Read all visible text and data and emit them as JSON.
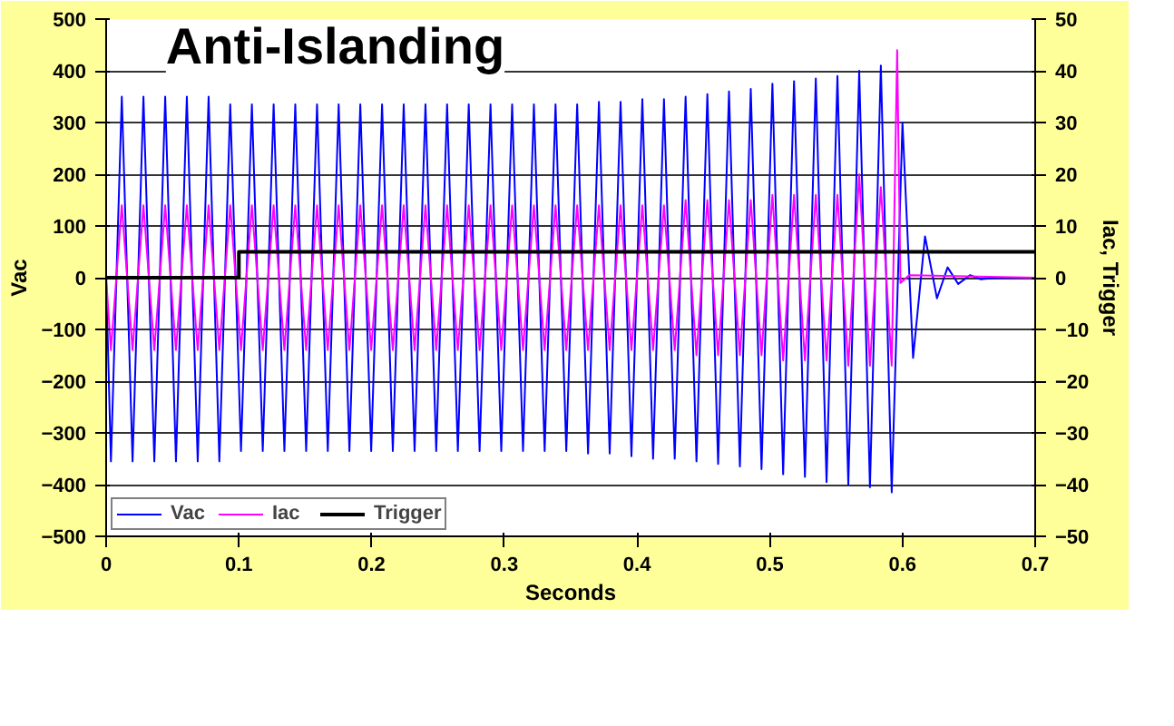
{
  "chart_data": {
    "type": "line",
    "title": "Anti-Islanding",
    "xlabel": "Seconds",
    "ylabel": "Vac",
    "y2label": "Iac, Trigger",
    "xlim": [
      0,
      0.7
    ],
    "xticks": [
      0,
      0.1,
      0.2,
      0.3,
      0.4,
      0.5,
      0.6,
      0.7
    ],
    "ylim": [
      -500,
      500
    ],
    "yticks": [
      -500,
      -400,
      -300,
      -200,
      -100,
      0,
      100,
      200,
      300,
      400,
      500
    ],
    "y2lim": [
      -50,
      50
    ],
    "y2ticks": [
      -50,
      -40,
      -30,
      -20,
      -10,
      0,
      10,
      20,
      30,
      40,
      50
    ],
    "grid": "y",
    "legend": "bottom left",
    "marker": "none",
    "line_style": "solid",
    "series": [
      {
        "name": "Vac",
        "color": "#0000ff",
        "x": [
          0,
          0.0036,
          0.0118,
          0.0199,
          0.0281,
          0.0363,
          0.0445,
          0.0526,
          0.0608,
          0.069,
          0.0772,
          0.0853,
          0.0935,
          0.1016,
          0.1098,
          0.118,
          0.1262,
          0.1343,
          0.1425,
          0.1507,
          0.1589,
          0.167,
          0.1752,
          0.1833,
          0.1915,
          0.1997,
          0.2079,
          0.216,
          0.2242,
          0.2324,
          0.2406,
          0.2487,
          0.2569,
          0.265,
          0.2732,
          0.2814,
          0.2896,
          0.2977,
          0.3059,
          0.3141,
          0.3223,
          0.3304,
          0.3386,
          0.3467,
          0.3549,
          0.3631,
          0.3713,
          0.3794,
          0.3876,
          0.3958,
          0.404,
          0.4121,
          0.4203,
          0.4284,
          0.4366,
          0.4448,
          0.453,
          0.4611,
          0.4693,
          0.4775,
          0.4857,
          0.4938,
          0.502,
          0.5101,
          0.5183,
          0.5265,
          0.5347,
          0.5428,
          0.551,
          0.5592,
          0.5674,
          0.5755,
          0.5837,
          0.5919,
          0.6,
          0.608,
          0.617,
          0.626,
          0.634,
          0.642,
          0.651,
          0.659,
          0.67,
          0.7
        ],
        "values": [
          0,
          -355,
          350,
          -355,
          350,
          -355,
          350,
          -355,
          350,
          -355,
          350,
          -355,
          335,
          -335,
          335,
          -335,
          335,
          -335,
          335,
          -335,
          335,
          -335,
          335,
          -335,
          335,
          -335,
          335,
          -335,
          335,
          -335,
          335,
          -335,
          335,
          -335,
          335,
          -335,
          335,
          -335,
          335,
          -335,
          335,
          -335,
          335,
          -335,
          335,
          -340,
          340,
          -340,
          340,
          -345,
          345,
          -350,
          345,
          -350,
          350,
          -355,
          355,
          -360,
          360,
          -365,
          365,
          -370,
          375,
          -380,
          380,
          -385,
          385,
          -395,
          390,
          -400,
          400,
          -405,
          410,
          -415,
          300,
          -155,
          80,
          -40,
          20,
          -12,
          5,
          -3,
          0,
          0
        ]
      },
      {
        "name": "Iac",
        "color": "#ff00ff",
        "axis": "y2",
        "x": [
          0,
          0.0036,
          0.0118,
          0.0199,
          0.0281,
          0.0363,
          0.0445,
          0.0526,
          0.0608,
          0.069,
          0.0772,
          0.0853,
          0.0935,
          0.1016,
          0.1098,
          0.118,
          0.1262,
          0.1343,
          0.1425,
          0.1507,
          0.1589,
          0.167,
          0.1752,
          0.1833,
          0.1915,
          0.1997,
          0.2079,
          0.216,
          0.2242,
          0.2324,
          0.2406,
          0.2487,
          0.2569,
          0.265,
          0.2732,
          0.2814,
          0.2896,
          0.2977,
          0.3059,
          0.3141,
          0.3223,
          0.3304,
          0.3386,
          0.3467,
          0.3549,
          0.3631,
          0.3713,
          0.3794,
          0.3876,
          0.3958,
          0.404,
          0.4121,
          0.4203,
          0.4284,
          0.4366,
          0.4448,
          0.453,
          0.4611,
          0.4693,
          0.4775,
          0.4857,
          0.4938,
          0.502,
          0.5101,
          0.5183,
          0.5265,
          0.5347,
          0.5428,
          0.551,
          0.5592,
          0.5674,
          0.5755,
          0.5837,
          0.5919,
          0.596,
          0.5985,
          0.605,
          0.7
        ],
        "values": [
          0,
          -14,
          14,
          -14,
          14,
          -14,
          14,
          -14,
          14,
          -14,
          14,
          -14,
          14,
          -14,
          14,
          -14,
          14,
          -14,
          14,
          -14,
          14,
          -14,
          14,
          -14,
          14,
          -14,
          14,
          -14,
          14,
          -14,
          14,
          -14,
          14,
          -14,
          14,
          -14,
          14,
          -14,
          14,
          -14,
          14,
          -14,
          14,
          -14,
          14,
          -14,
          14,
          -14,
          14,
          -14,
          14,
          -14,
          14,
          -14,
          15,
          -15,
          15,
          -15,
          15,
          -15,
          15,
          -15,
          16,
          -16,
          16,
          -16,
          16,
          -16,
          16,
          -17,
          20,
          -17,
          17.5,
          -17,
          44,
          -1,
          0.5,
          0
        ]
      },
      {
        "name": "Trigger",
        "color": "#000000",
        "axis": "y2",
        "x": [
          0,
          0.1,
          0.1,
          0.7
        ],
        "values": [
          0,
          0,
          5,
          5
        ]
      }
    ]
  }
}
